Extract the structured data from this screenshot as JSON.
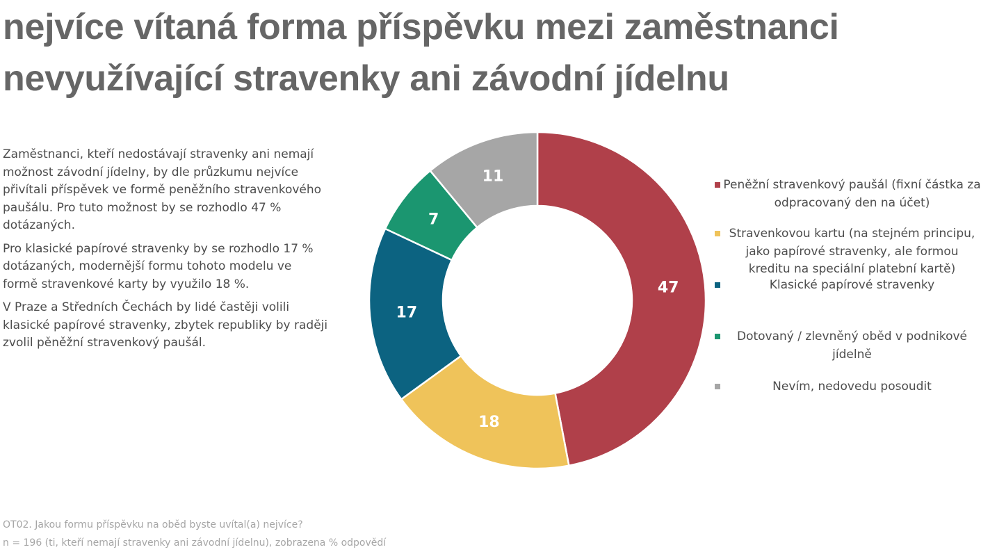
{
  "title": {
    "line1": "nejvíce vítaná forma příspěvku mezi zaměstnanci",
    "line2": "nevyužívající stravenky ani závodní jídelnu"
  },
  "description": {
    "p1": "Zaměstnanci, kteří nedostávají stravenky ani nemají možnost závodní jídelny, by dle průzkumu nejvíce přivítali příspěvek ve formě peněžního stravenkového paušálu. Pro tuto možnost by se rozhodlo 47 % dotázaných.",
    "p2": "Pro klasické papírové stravenky by se rozhodlo 17 % dotázaných, modernější formu tohoto modelu ve formě stravenkové karty by využilo 18 %.",
    "p3": "V Praze a Středních Čechách by lidé častěji volili klasické papírové stravenky, zbytek republiky by raději zvolil pěněžní stravenkový paušál."
  },
  "footnote": {
    "question": "OT02. Jakou formu příspěvku na oběd byste uvítal(a) nejvíce?",
    "sample": "n = 196 (ti, kteří nemají stravenky ani závodní jídelnu), zobrazena % odpovědí"
  },
  "chart_data": {
    "type": "pie",
    "variant": "donut",
    "unit": "%",
    "start": "12 o'clock, clockwise",
    "legend_position": "right",
    "slices": [
      {
        "label": "Peněžní stravenkový paušál (fixní částka za odpracovaný den na účet)",
        "value": 47,
        "color": "#b0404a"
      },
      {
        "label": "Stravenkovou kartu (na stejném principu, jako papírové stravenky, ale formou kreditu na speciální platební kartě)",
        "value": 18,
        "color": "#efc35a"
      },
      {
        "label": "Klasické papírové stravenky",
        "value": 17,
        "color": "#0c6381"
      },
      {
        "label": "Dotovaný / zlevněný oběd v podnikové jídelně",
        "value": 7,
        "color": "#1b9670"
      },
      {
        "label": "Nevím, nedovedu posoudit",
        "value": 11,
        "color": "#a6a6a6"
      }
    ]
  }
}
